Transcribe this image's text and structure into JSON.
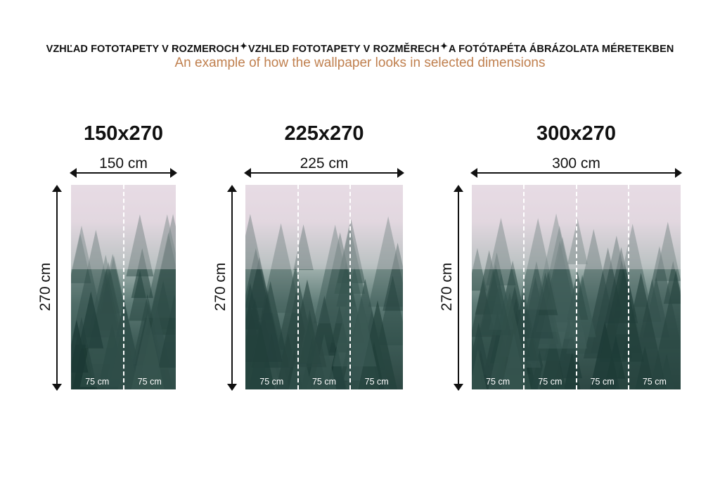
{
  "header": {
    "languages": [
      "VZHĽAD FOTOTAPETY V ROZMEROCH",
      "VZHLED FOTOTAPETY V ROZMĚRECH",
      "A FOTÓTAPÉTA ÁBRÁZOLATA MÉRETEKBEN"
    ],
    "separator_icon": "sparkle-icon",
    "subtitle": "An example of how the wallpaper looks in selected dimensions"
  },
  "colors": {
    "subtitle": "#c0804f",
    "text": "#111111"
  },
  "panels": [
    {
      "title": "150x270",
      "width_label": "150 cm",
      "height_label": "270 cm",
      "strips": [
        "75 cm",
        "75 cm"
      ]
    },
    {
      "title": "225x270",
      "width_label": "225 cm",
      "height_label": "270 cm",
      "strips": [
        "75 cm",
        "75 cm",
        "75 cm"
      ]
    },
    {
      "title": "300x270",
      "width_label": "300 cm",
      "height_label": "270 cm",
      "strips": [
        "75 cm",
        "75 cm",
        "75 cm",
        "75 cm"
      ]
    }
  ]
}
